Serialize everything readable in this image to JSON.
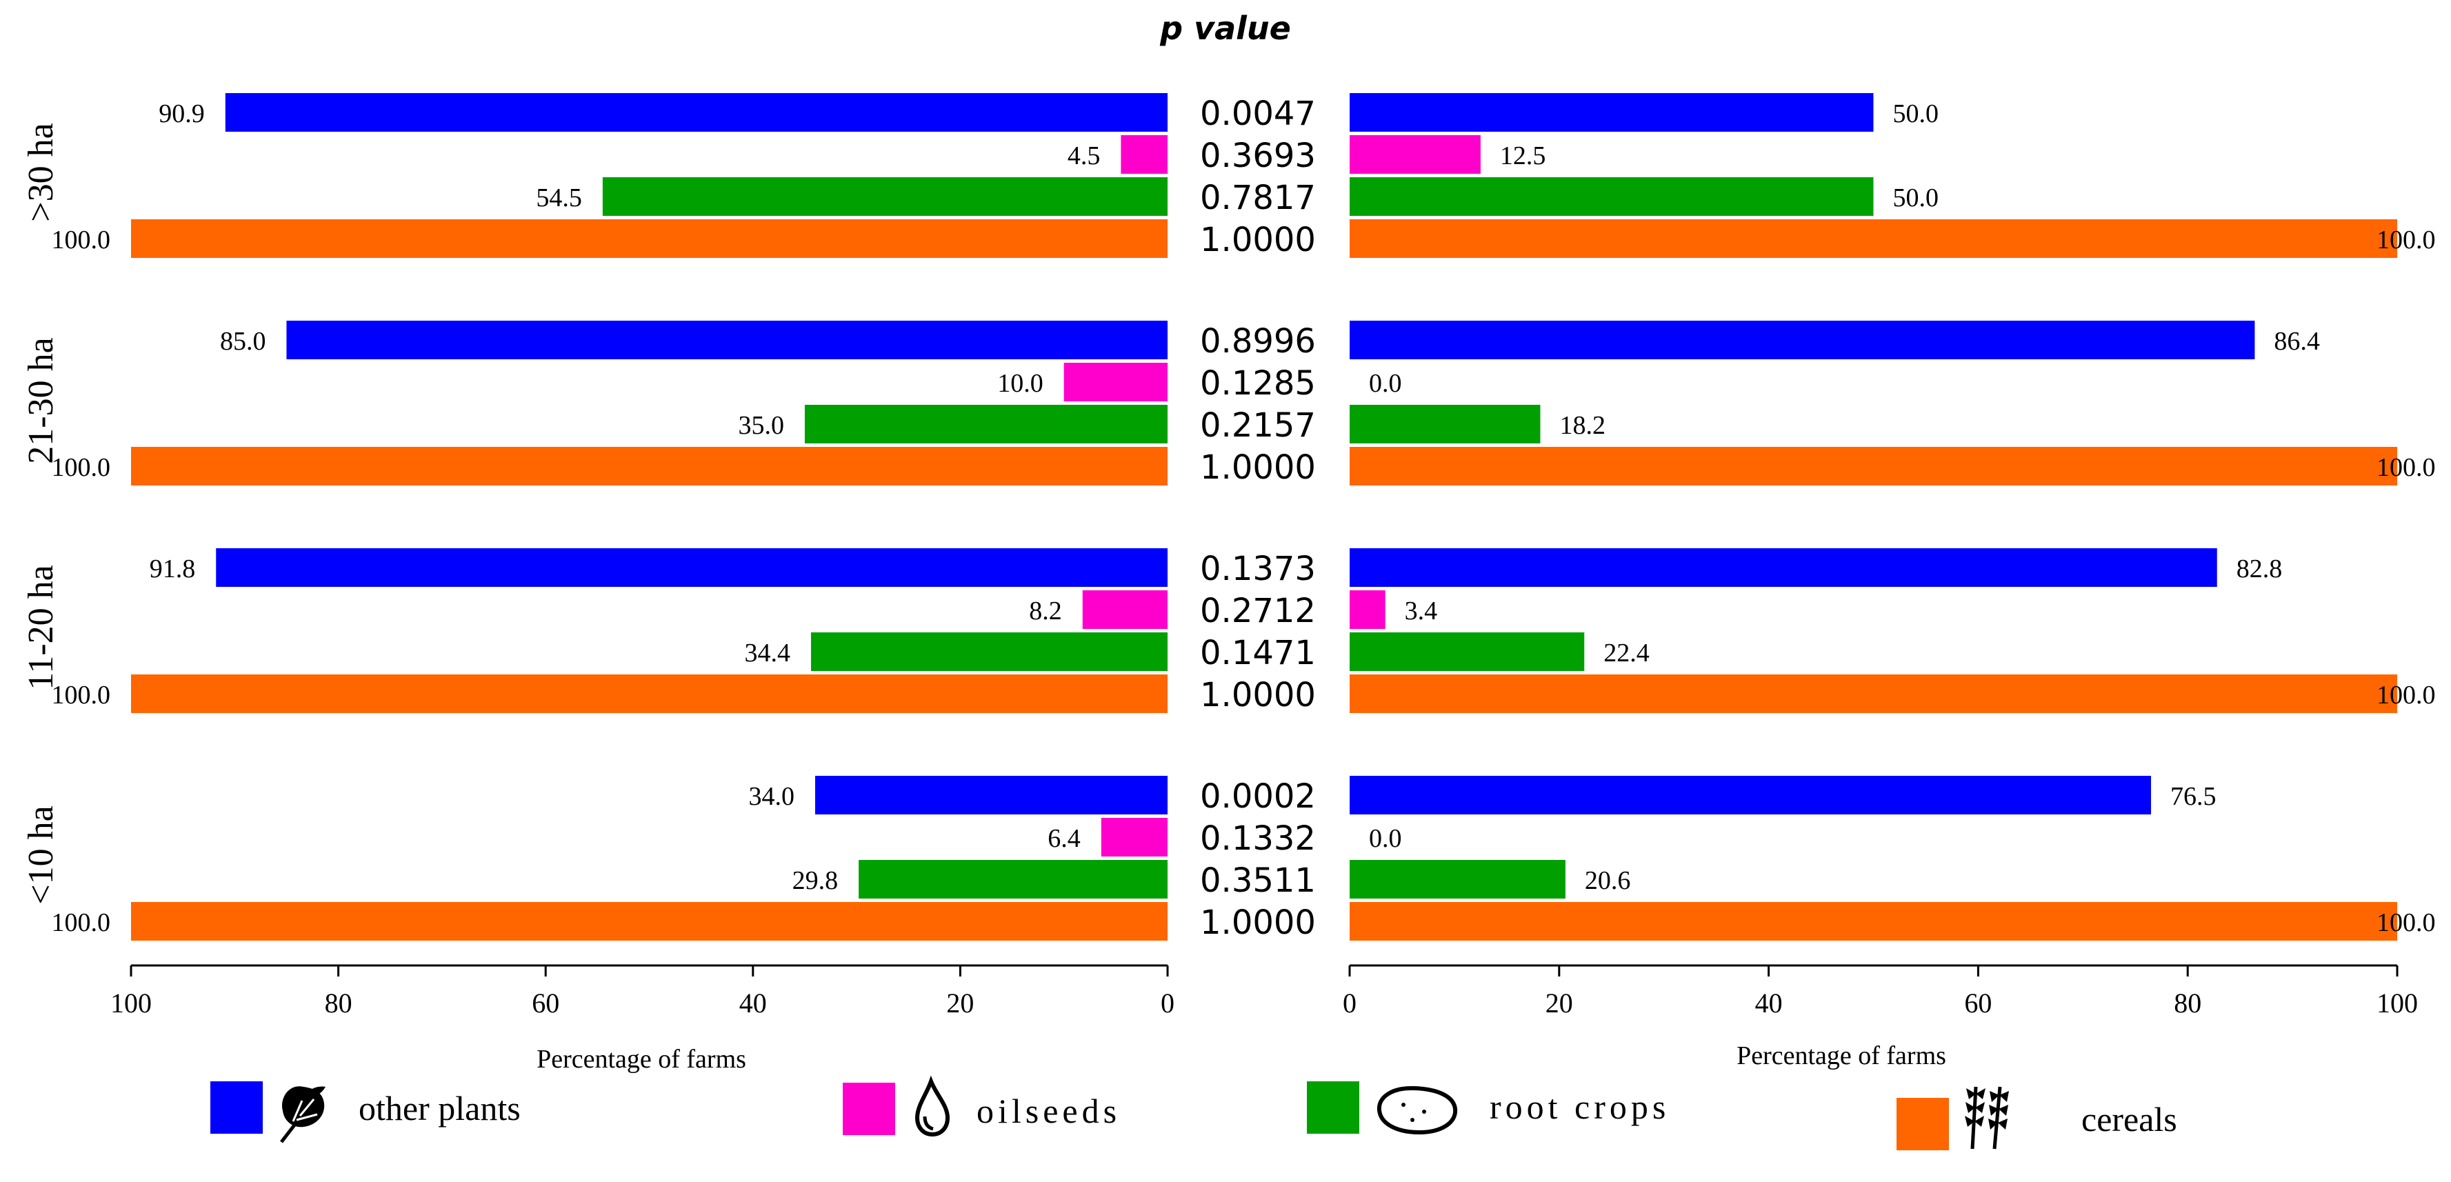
{
  "chart_data": {
    "type": "bar",
    "title": "p value",
    "groups": [
      "<10 ha",
      "11-20 ha",
      "21-30 ha",
      ">30 ha"
    ],
    "series": [
      {
        "name": "other plants",
        "color": "#0000ff",
        "icon": "leaf-icon"
      },
      {
        "name": "oilseeds",
        "color": "#ff00cc",
        "icon": "oil-drop-icon"
      },
      {
        "name": "root crops",
        "color": "#00a000",
        "icon": "potato-icon"
      },
      {
        "name": "cereals",
        "color": "#ff6600",
        "icon": "wheat-icon"
      }
    ],
    "left_panel": {
      "xlabel": "Percentage of farms",
      "xlim": [
        100,
        0
      ],
      "ticks": [
        "100",
        "80",
        "60",
        "40",
        "20",
        "0"
      ],
      "values": {
        "<10 ha": [
          34.0,
          6.4,
          29.8,
          100.0
        ],
        "11-20 ha": [
          91.8,
          8.2,
          34.4,
          100.0
        ],
        "21-30 ha": [
          85.0,
          10.0,
          35.0,
          100.0
        ],
        ">30 ha": [
          90.9,
          4.5,
          54.5,
          100.0
        ]
      },
      "labels": {
        "<10 ha": [
          "34.0",
          "6.4",
          "29.8",
          "100.0"
        ],
        "11-20 ha": [
          "91.8",
          "8.2",
          "34.4",
          "100.0"
        ],
        "21-30 ha": [
          "85.0",
          "10.0",
          "35.0",
          "100.0"
        ],
        ">30 ha": [
          "90.9",
          "4.5",
          "54.5",
          "100.0"
        ]
      }
    },
    "right_panel": {
      "xlabel": "Percentage of farms",
      "xlim": [
        0,
        100
      ],
      "ticks": [
        "0",
        "20",
        "40",
        "60",
        "80",
        "100"
      ],
      "values": {
        "<10 ha": [
          76.5,
          0.0,
          20.6,
          100.0
        ],
        "11-20 ha": [
          82.8,
          3.4,
          22.4,
          100.0
        ],
        "21-30 ha": [
          86.4,
          0.0,
          18.2,
          100.0
        ],
        ">30 ha": [
          50.0,
          12.5,
          50.0,
          100.0
        ]
      },
      "labels": {
        "<10 ha": [
          "76.5",
          "0.0",
          "20.6",
          "100.0"
        ],
        "11-20 ha": [
          "82.8",
          "3.4",
          "22.4",
          "100.0"
        ],
        "21-30 ha": [
          "86.4",
          "0.0",
          "18.2",
          "100.0"
        ],
        ">30 ha": [
          "50.0",
          "12.5",
          "50.0",
          "100.0"
        ]
      }
    },
    "p_values": {
      "<10 ha": [
        "0.0002",
        "0.1332",
        "0.3511",
        "1.0000"
      ],
      "11-20 ha": [
        "0.1373",
        "0.2712",
        "0.1471",
        "1.0000"
      ],
      "21-30 ha": [
        "0.8996",
        "0.1285",
        "0.2157",
        "1.0000"
      ],
      ">30 ha": [
        "0.0047",
        "0.3693",
        "0.7817",
        "1.0000"
      ]
    }
  }
}
